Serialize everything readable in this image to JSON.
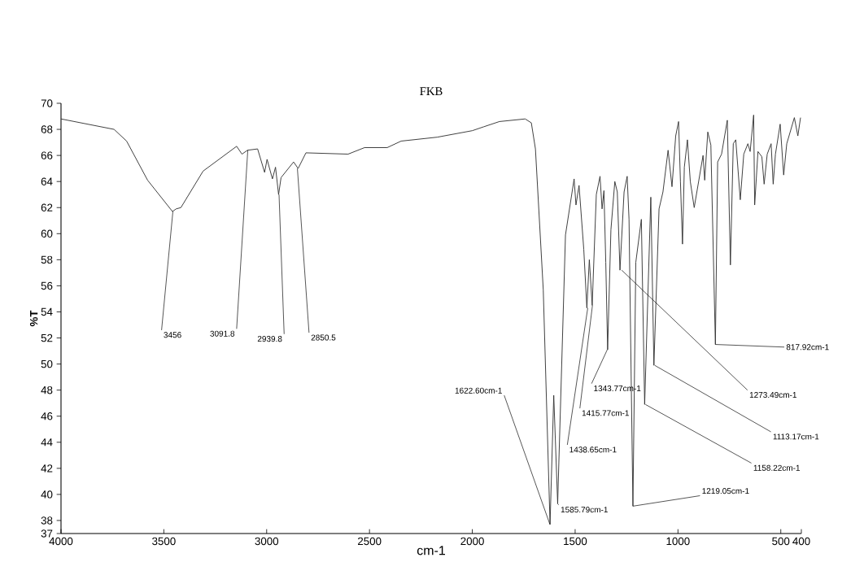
{
  "chart_data": {
    "type": "line",
    "title": "FKB",
    "xlabel": "cm-1",
    "ylabel": "%T",
    "xlim": [
      4000,
      400
    ],
    "ylim": [
      37,
      70
    ],
    "xticks": [
      4000,
      3500,
      3000,
      2500,
      2000,
      1500,
      1000,
      500,
      400
    ],
    "yticks": [
      37,
      38,
      40,
      42,
      44,
      46,
      48,
      50,
      52,
      54,
      56,
      58,
      60,
      62,
      64,
      66,
      68,
      70
    ],
    "grid": false,
    "series": [
      {
        "color": "#333333",
        "x": [
          4000,
          3742,
          3681,
          3579,
          3458,
          3440,
          3417,
          3309,
          3146,
          3120,
          3093,
          3044,
          3010,
          2998,
          2972,
          2957,
          2942,
          2930,
          2869,
          2847,
          2809,
          2604,
          2524,
          2414,
          2346,
          2171,
          2000,
          1944,
          1868,
          1743,
          1713,
          1693,
          1655,
          1622,
          1604,
          1585,
          1547,
          1505,
          1496,
          1481,
          1458,
          1443,
          1431,
          1417,
          1397,
          1379,
          1369,
          1360,
          1351,
          1342,
          1326,
          1307,
          1295,
          1282,
          1262,
          1247,
          1238,
          1219,
          1205,
          1178,
          1162,
          1132,
          1117,
          1092,
          1073,
          1048,
          1029,
          1011,
          997,
          988,
          978,
          969,
          954,
          940,
          921,
          878,
          870,
          855,
          840,
          818,
          807,
          788,
          760,
          745,
          731,
          719,
          697,
          680,
          660,
          649,
          632,
          627,
          611,
          592,
          581,
          566,
          547,
          537,
          526,
          503,
          486,
          471,
          434,
          417,
          404
        ],
        "values": [
          68.8,
          68.0,
          67.1,
          64.1,
          61.7,
          61.9,
          62.0,
          64.8,
          66.7,
          66.1,
          66.4,
          66.5,
          64.7,
          65.7,
          64.2,
          65.1,
          63.0,
          64.3,
          65.5,
          65.0,
          66.2,
          66.1,
          66.6,
          66.6,
          67.1,
          67.4,
          67.9,
          68.2,
          68.6,
          68.8,
          68.5,
          66.5,
          55.7,
          37.7,
          47.6,
          39.3,
          59.9,
          64.2,
          62.2,
          63.7,
          58.8,
          54.3,
          58.0,
          54.5,
          63.0,
          64.4,
          61.9,
          63.3,
          57.8,
          51.1,
          60.3,
          64.0,
          63.2,
          57.2,
          63.2,
          64.4,
          61.1,
          39.1,
          57.8,
          61.1,
          46.9,
          62.8,
          49.9,
          61.9,
          63.2,
          66.4,
          63.6,
          67.5,
          68.6,
          64.0,
          59.2,
          65.1,
          67.2,
          64.0,
          62.0,
          66.0,
          64.1,
          67.8,
          66.8,
          51.5,
          65.5,
          66.1,
          68.7,
          57.6,
          66.9,
          67.2,
          62.6,
          66.1,
          66.9,
          66.3,
          69.1,
          62.2,
          66.3,
          65.9,
          63.8,
          66.1,
          66.9,
          63.8,
          66.1,
          68.4,
          64.5,
          66.9,
          68.9,
          67.5,
          68.9
        ]
      }
    ],
    "annotations": [
      {
        "text": "3456",
        "x": 3456,
        "y": 61.7
      },
      {
        "text": "3091.8",
        "x": 3091.8,
        "y": 66.4
      },
      {
        "text": "2939.8",
        "x": 2939.8,
        "y": 63.0
      },
      {
        "text": "2850.5",
        "x": 2850.5,
        "y": 65.0
      },
      {
        "text": "1622.60cm-1",
        "x": 1622.6,
        "y": 37.7
      },
      {
        "text": "1585.79cm-1",
        "x": 1585.79,
        "y": 39.3
      },
      {
        "text": "1438.65cm-1",
        "x": 1438.65,
        "y": 54.3
      },
      {
        "text": "1415.77cm-1",
        "x": 1415.77,
        "y": 54.5
      },
      {
        "text": "1343.77cm-1",
        "x": 1343.77,
        "y": 51.1
      },
      {
        "text": "1273.49cm-1",
        "x": 1273.49,
        "y": 57.2
      },
      {
        "text": "1219.05cm-1",
        "x": 1219.05,
        "y": 39.1
      },
      {
        "text": "1158.22cm-1",
        "x": 1158.22,
        "y": 46.9
      },
      {
        "text": "1113.17cm-1",
        "x": 1113.17,
        "y": 49.9
      },
      {
        "text": "817.92cm-1",
        "x": 817.92,
        "y": 51.5
      }
    ]
  }
}
